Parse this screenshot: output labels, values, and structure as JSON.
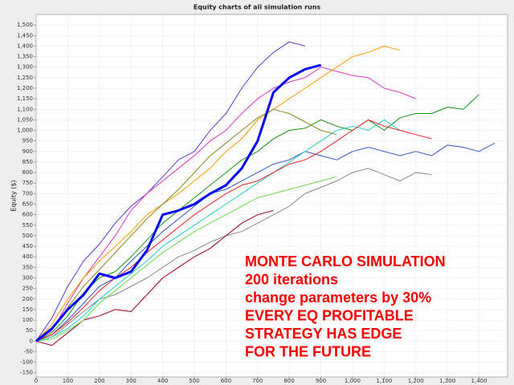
{
  "chart_data": {
    "type": "line",
    "title": "Equity charts of all simulation runs",
    "y_label": "Equity ($)",
    "annotations": [
      "MONTE CARLO SIMULATION",
      "200 iterations",
      "change parameters by 30%",
      "EVERY EQ PROFITABLE",
      "STRATEGY HAS EDGE",
      "FOR THE FUTURE"
    ],
    "annotation_color": "#ff0000",
    "grid": true,
    "xlim": [
      0,
      1490
    ],
    "ylim": [
      -170,
      1550
    ],
    "xticks": [
      0,
      100,
      200,
      300,
      400,
      500,
      600,
      700,
      800,
      900,
      {
        "value": 1000,
        "label": "1,000"
      },
      {
        "value": 1100,
        "label": "1,100"
      },
      {
        "value": 1200,
        "label": "1,200"
      },
      {
        "value": 1300,
        "label": "1,300"
      },
      {
        "value": 1400,
        "label": "1,400"
      }
    ],
    "yticks": [
      -150,
      -100,
      -50,
      0,
      50,
      100,
      150,
      200,
      250,
      300,
      350,
      400,
      450,
      500,
      550,
      600,
      650,
      700,
      750,
      800,
      850,
      900,
      950,
      {
        "value": 1000,
        "label": "1,000"
      },
      {
        "value": 1050,
        "label": "1,050"
      },
      {
        "value": 1100,
        "label": "1,100"
      },
      {
        "value": 1150,
        "label": "1,150"
      },
      {
        "value": 1200,
        "label": "1,200"
      },
      {
        "value": 1250,
        "label": "1,250"
      },
      {
        "value": 1300,
        "label": "1,300"
      },
      {
        "value": 1350,
        "label": "1,350"
      },
      {
        "value": 1400,
        "label": "1,400"
      },
      {
        "value": 1450,
        "label": "1,450"
      },
      {
        "value": 1500,
        "label": "1,500"
      }
    ],
    "x": [
      0,
      50,
      100,
      150,
      200,
      250,
      300,
      350,
      400,
      450,
      500,
      550,
      600,
      650,
      700,
      750,
      800,
      850,
      900,
      950,
      1000,
      1050,
      1100,
      1150,
      1200,
      1250,
      1300,
      1350,
      1400,
      1450
    ],
    "series": [
      {
        "color": "#6633cc",
        "values": [
          0,
          110,
          260,
          380,
          460,
          560,
          640,
          700,
          780,
          860,
          900,
          1000,
          1080,
          1200,
          1300,
          1370,
          1420,
          1400,
          null,
          null,
          null,
          null,
          null,
          null,
          null,
          null,
          null,
          null,
          null,
          null
        ]
      },
      {
        "color": "#119911",
        "values": [
          0,
          40,
          120,
          230,
          300,
          330,
          400,
          480,
          560,
          620,
          680,
          740,
          800,
          860,
          900,
          960,
          1000,
          1010,
          1050,
          1020,
          1000,
          1050,
          1000,
          1060,
          1080,
          1080,
          1110,
          1100,
          1170,
          null
        ]
      },
      {
        "color": "#3355cc",
        "values": [
          0,
          30,
          100,
          180,
          260,
          300,
          380,
          450,
          520,
          580,
          640,
          700,
          720,
          760,
          800,
          840,
          860,
          900,
          880,
          860,
          900,
          920,
          900,
          880,
          900,
          880,
          930,
          920,
          900,
          940
        ]
      },
      {
        "color": "#888888",
        "values": [
          0,
          20,
          80,
          140,
          200,
          220,
          260,
          300,
          350,
          400,
          430,
          470,
          500,
          520,
          560,
          600,
          640,
          700,
          730,
          760,
          800,
          820,
          790,
          760,
          800,
          790,
          null,
          null,
          null,
          null
        ]
      },
      {
        "color": "#990022",
        "values": [
          0,
          -20,
          40,
          100,
          120,
          150,
          140,
          220,
          300,
          350,
          400,
          440,
          500,
          560,
          600,
          620,
          null,
          null,
          null,
          null,
          null,
          null,
          null,
          null,
          null,
          null,
          null,
          null,
          null,
          null
        ]
      },
      {
        "color": "#dd33cc",
        "values": [
          0,
          50,
          180,
          300,
          400,
          500,
          620,
          700,
          760,
          820,
          880,
          950,
          1000,
          1080,
          1150,
          1200,
          1230,
          1250,
          1300,
          1280,
          1260,
          1250,
          1200,
          1180,
          1150,
          null,
          null,
          null,
          null,
          null
        ]
      },
      {
        "color": "#ff9900",
        "values": [
          0,
          80,
          200,
          300,
          380,
          450,
          520,
          600,
          650,
          700,
          760,
          820,
          900,
          960,
          1050,
          1100,
          1150,
          1200,
          1250,
          1300,
          1350,
          1370,
          1400,
          1380,
          null,
          null,
          null,
          null,
          null,
          null
        ]
      },
      {
        "color": "#22cccc",
        "values": [
          0,
          20,
          60,
          120,
          200,
          260,
          320,
          380,
          450,
          500,
          550,
          600,
          650,
          700,
          750,
          800,
          850,
          900,
          950,
          1000,
          1020,
          1000,
          1050,
          1000,
          null,
          null,
          null,
          null,
          null,
          null
        ]
      },
      {
        "color": "#ee2222",
        "values": [
          0,
          30,
          90,
          160,
          240,
          300,
          350,
          420,
          480,
          540,
          600,
          650,
          700,
          740,
          760,
          800,
          840,
          860,
          900,
          950,
          1000,
          1050,
          1020,
          1000,
          980,
          960,
          null,
          null,
          null,
          null
        ]
      },
      {
        "color": "#66dd44",
        "values": [
          0,
          10,
          50,
          100,
          180,
          240,
          300,
          360,
          420,
          470,
          520,
          560,
          600,
          640,
          680,
          700,
          720,
          740,
          760,
          780,
          null,
          null,
          null,
          null,
          null,
          null,
          null,
          null,
          null,
          null
        ]
      },
      {
        "color": "#888822",
        "values": [
          0,
          60,
          160,
          260,
          340,
          420,
          500,
          580,
          650,
          720,
          800,
          880,
          940,
          1000,
          1060,
          1100,
          1080,
          1040,
          1000,
          980,
          null,
          null,
          null,
          null,
          null,
          null,
          null,
          null,
          null,
          null
        ]
      },
      {
        "color": "#0000ff",
        "values": [
          0,
          60,
          150,
          220,
          320,
          300,
          330,
          430,
          600,
          620,
          650,
          700,
          740,
          820,
          950,
          1180,
          1250,
          1290,
          1310,
          null,
          null,
          null,
          null,
          null,
          null,
          null,
          null,
          null,
          null,
          null
        ]
      }
    ]
  }
}
